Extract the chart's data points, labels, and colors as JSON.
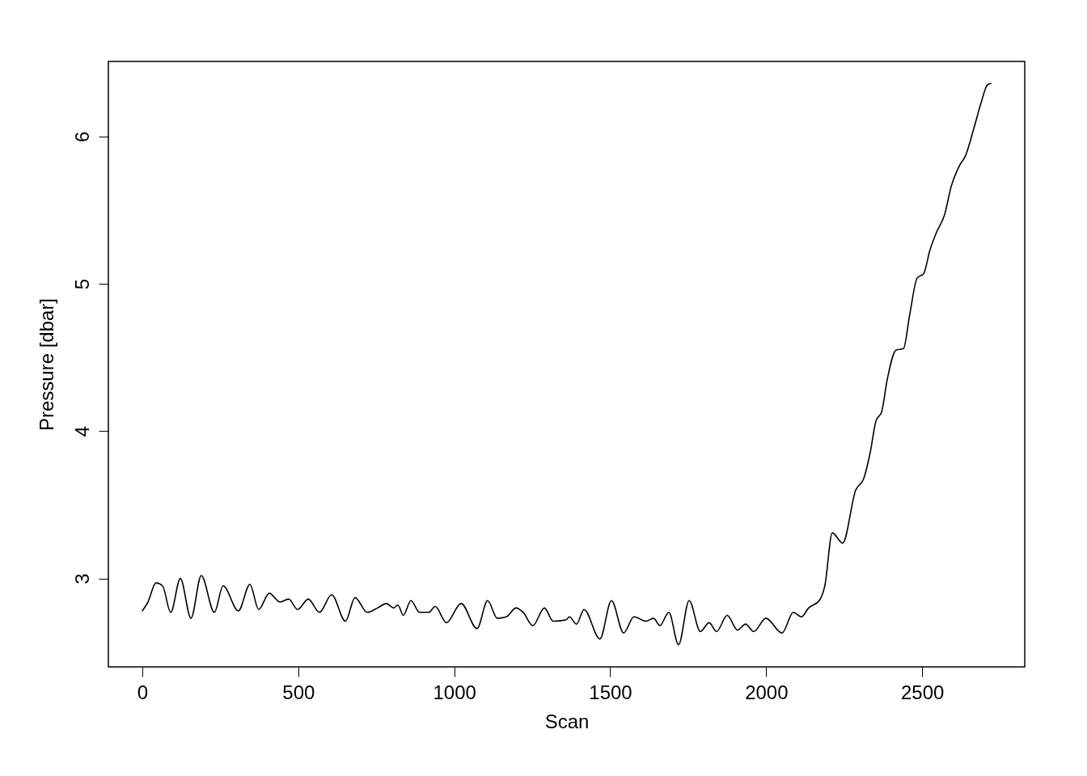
{
  "chart_data": {
    "type": "line",
    "xlabel": "Scan",
    "ylabel": "Pressure [dbar]",
    "xlim": [
      -108.8,
      2828.8
    ],
    "xticks": [
      0,
      500,
      1000,
      1500,
      2000,
      2500
    ],
    "ylim": [
      2.4,
      6.51
    ],
    "yticks": [
      3,
      4,
      5,
      6
    ],
    "grid": false,
    "marker": "none",
    "line_style": "solid",
    "series": [
      {
        "color": "#000000",
        "x": [
          0,
          18,
          44,
          65,
          91,
          122,
          156,
          189,
          231,
          259,
          308,
          345,
          373,
          407,
          441,
          469,
          498,
          532,
          568,
          607,
          651,
          682,
          721,
          754,
          783,
          806,
          819,
          837,
          861,
          889,
          918,
          939,
          975,
          1022,
          1073,
          1107,
          1138,
          1167,
          1198,
          1221,
          1252,
          1289,
          1317,
          1359,
          1369,
          1392,
          1416,
          1467,
          1504,
          1543,
          1576,
          1615,
          1639,
          1659,
          1688,
          1719,
          1753,
          1789,
          1817,
          1841,
          1875,
          1908,
          1934,
          1960,
          1999,
          2051,
          2087,
          2113,
          2136,
          2170,
          2188,
          2212,
          2245,
          2287,
          2313,
          2333,
          2352,
          2370,
          2388,
          2416,
          2440,
          2460,
          2484,
          2505,
          2525,
          2546,
          2572,
          2593,
          2619,
          2639,
          2665,
          2689,
          2709,
          2720
        ],
        "values": [
          2.78,
          2.84,
          2.97,
          2.95,
          2.77,
          3.0,
          2.73,
          3.02,
          2.77,
          2.95,
          2.78,
          2.96,
          2.79,
          2.9,
          2.84,
          2.86,
          2.79,
          2.86,
          2.77,
          2.89,
          2.71,
          2.87,
          2.77,
          2.8,
          2.83,
          2.8,
          2.82,
          2.75,
          2.85,
          2.77,
          2.77,
          2.81,
          2.7,
          2.83,
          2.66,
          2.85,
          2.73,
          2.74,
          2.8,
          2.77,
          2.68,
          2.8,
          2.71,
          2.72,
          2.74,
          2.69,
          2.79,
          2.59,
          2.85,
          2.63,
          2.74,
          2.71,
          2.73,
          2.68,
          2.77,
          2.55,
          2.85,
          2.64,
          2.7,
          2.64,
          2.75,
          2.65,
          2.69,
          2.64,
          2.73,
          2.63,
          2.77,
          2.74,
          2.8,
          2.85,
          2.95,
          3.31,
          3.24,
          3.6,
          3.68,
          3.85,
          4.07,
          4.13,
          4.35,
          4.55,
          4.56,
          4.79,
          5.04,
          5.07,
          5.23,
          5.35,
          5.47,
          5.66,
          5.8,
          5.87,
          6.05,
          6.23,
          6.35,
          6.36
        ]
      }
    ]
  }
}
